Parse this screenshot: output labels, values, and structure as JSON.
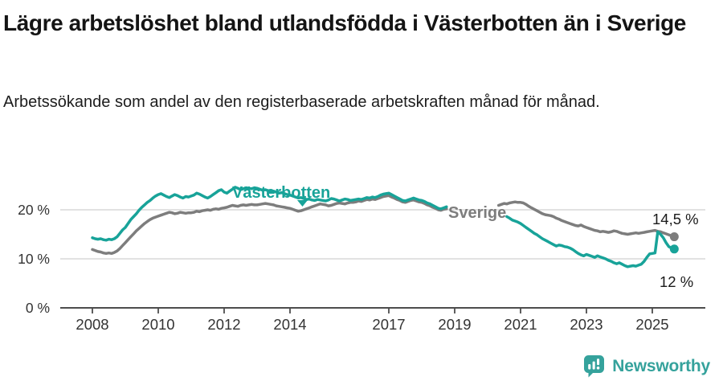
{
  "header": {
    "title": "Lägre arbetslöshet bland utlandsfödda i Västerbotten än i Sverige",
    "subtitle": "Arbetssökande som andel av den registerbaserade arbetskraften månad för månad."
  },
  "footer": {
    "brand": "Newsworthy",
    "logo_icon": "newsworthy-speech-bubble-bar-chart-icon"
  },
  "colors": {
    "vasterbotten_teal": "#18a399",
    "sverige_gray": "#7d7d7d",
    "grid": "#d8d8d8",
    "axis": "#4d4d4d",
    "tick_text": "#333333",
    "end_label_text": "#1a1a1a",
    "brand_teal": "#35a29c",
    "title_text": "#141414"
  },
  "chart_data": {
    "type": "line",
    "title": "Lägre arbetslöshet bland utlandsfödda i Västerbotten än i Sverige",
    "subtitle": "Arbetssökande som andel av den registerbaserade arbetskraften månad för månad.",
    "x_unit": "month",
    "x_start": "2008-01",
    "x_end": "2025-09",
    "x_ticks": [
      2008,
      2010,
      2012,
      2014,
      2017,
      2019,
      2021,
      2023,
      2025
    ],
    "y_ticks": [
      {
        "value": 0,
        "label": "0 %"
      },
      {
        "value": 10,
        "label": "10 %"
      },
      {
        "value": 20,
        "label": "20 %"
      }
    ],
    "ylim": [
      0,
      26.5
    ],
    "xlim": [
      2007.9,
      2026.6
    ],
    "grid": "horizontal",
    "legend": "inline-series-labels",
    "note_data_gap": "no data plotted Nov 2018 through Apr 2020 (visible gap in both lines)",
    "series": [
      {
        "name": "Sverige",
        "color": "#7d7d7d",
        "end_label": "14,5 %",
        "end_value": 14.5,
        "values": [
          11.9,
          11.7,
          11.5,
          11.4,
          11.2,
          11.1,
          11.2,
          11.1,
          11.3,
          11.6,
          12.1,
          12.7,
          13.3,
          13.9,
          14.5,
          15.1,
          15.7,
          16.2,
          16.7,
          17.2,
          17.6,
          18.0,
          18.3,
          18.5,
          18.7,
          18.9,
          19.1,
          19.3,
          19.5,
          19.4,
          19.2,
          19.3,
          19.5,
          19.4,
          19.3,
          19.4,
          19.4,
          19.5,
          19.7,
          19.6,
          19.8,
          19.9,
          20.0,
          19.9,
          20.1,
          20.2,
          20.1,
          20.3,
          20.4,
          20.5,
          20.7,
          20.9,
          20.8,
          20.7,
          20.9,
          21.0,
          20.9,
          21.0,
          21.1,
          21.0,
          21.0,
          21.1,
          21.2,
          21.3,
          21.2,
          21.1,
          21.0,
          20.8,
          20.7,
          20.6,
          20.5,
          20.4,
          20.3,
          20.1,
          19.9,
          19.7,
          19.8,
          20.0,
          20.2,
          20.4,
          20.6,
          20.8,
          21.0,
          21.2,
          21.1,
          21.0,
          20.8,
          20.9,
          21.1,
          21.3,
          21.4,
          21.3,
          21.2,
          21.4,
          21.5,
          21.5,
          21.6,
          21.8,
          21.7,
          21.9,
          22.1,
          22.0,
          22.2,
          22.1,
          22.3,
          22.5,
          22.7,
          22.8,
          22.9,
          22.6,
          22.4,
          22.1,
          21.9,
          21.6,
          21.5,
          21.7,
          21.9,
          22.0,
          21.8,
          21.6,
          21.5,
          21.3,
          21.0,
          20.8,
          20.5,
          20.3,
          20.0,
          19.9,
          20.1,
          20.2,
          null,
          null,
          null,
          null,
          null,
          null,
          null,
          null,
          null,
          null,
          null,
          null,
          null,
          null,
          null,
          null,
          null,
          null,
          20.9,
          21.1,
          21.3,
          21.2,
          21.4,
          21.5,
          21.6,
          21.5,
          21.5,
          21.4,
          21.1,
          20.7,
          20.4,
          20.1,
          19.8,
          19.5,
          19.2,
          19.0,
          18.9,
          18.8,
          18.6,
          18.3,
          18.1,
          17.8,
          17.6,
          17.4,
          17.2,
          17.0,
          16.8,
          16.7,
          16.9,
          16.6,
          16.4,
          16.2,
          16.0,
          15.8,
          15.7,
          15.5,
          15.6,
          15.5,
          15.4,
          15.5,
          15.7,
          15.6,
          15.4,
          15.2,
          15.1,
          15.0,
          15.1,
          15.2,
          15.3,
          15.2,
          15.3,
          15.4,
          15.5,
          15.6,
          15.7,
          15.8,
          15.6,
          15.5,
          15.3,
          15.1,
          14.9,
          14.7,
          14.5
        ]
      },
      {
        "name": "Västerbotten",
        "color": "#18a399",
        "end_label": "12 %",
        "end_value": 12.0,
        "values": [
          14.3,
          14.1,
          14.0,
          14.1,
          13.9,
          13.8,
          14.0,
          13.9,
          14.1,
          14.5,
          15.2,
          15.9,
          16.4,
          17.2,
          18.0,
          18.6,
          19.2,
          19.9,
          20.5,
          21.0,
          21.5,
          21.9,
          22.4,
          22.8,
          23.1,
          23.3,
          23.0,
          22.7,
          22.5,
          22.8,
          23.1,
          22.9,
          22.6,
          22.4,
          22.7,
          22.6,
          22.8,
          23.0,
          23.4,
          23.2,
          22.9,
          22.6,
          22.4,
          22.7,
          23.1,
          23.5,
          23.9,
          24.1,
          23.6,
          23.4,
          23.8,
          24.2,
          24.6,
          24.4,
          24.1,
          24.3,
          24.5,
          24.4,
          24.3,
          24.5,
          24.4,
          24.2,
          24.0,
          24.1,
          23.9,
          23.7,
          23.8,
          23.6,
          23.4,
          23.5,
          23.3,
          23.1,
          23.0,
          22.8,
          22.6,
          22.4,
          22.5,
          22.3,
          22.1,
          22.2,
          22.0,
          21.9,
          22.1,
          22.0,
          21.9,
          21.8,
          22.0,
          22.3,
          22.2,
          22.0,
          21.8,
          22.0,
          22.2,
          22.1,
          21.9,
          22.0,
          22.1,
          22.2,
          22.1,
          22.3,
          22.5,
          22.4,
          22.6,
          22.5,
          22.7,
          23.0,
          23.2,
          23.3,
          23.4,
          23.1,
          22.8,
          22.5,
          22.2,
          21.9,
          21.8,
          22.0,
          22.2,
          22.4,
          22.2,
          22.0,
          21.9,
          21.7,
          21.4,
          21.2,
          20.9,
          20.6,
          20.3,
          20.2,
          20.4,
          20.6,
          null,
          null,
          null,
          null,
          null,
          null,
          null,
          null,
          null,
          null,
          null,
          null,
          null,
          null,
          null,
          null,
          null,
          null,
          null,
          null,
          null,
          18.6,
          18.3,
          17.9,
          17.7,
          17.5,
          17.2,
          16.8,
          16.4,
          16.0,
          15.6,
          15.2,
          14.9,
          14.5,
          14.1,
          13.8,
          13.5,
          13.2,
          12.9,
          12.6,
          12.8,
          12.7,
          12.5,
          12.4,
          12.2,
          11.9,
          11.5,
          11.1,
          10.8,
          10.6,
          10.9,
          10.7,
          10.5,
          10.3,
          10.6,
          10.4,
          10.2,
          10.0,
          9.7,
          9.5,
          9.2,
          9.0,
          9.2,
          8.9,
          8.6,
          8.4,
          8.5,
          8.6,
          8.5,
          8.7,
          8.9,
          9.5,
          10.3,
          11.0,
          11.1,
          11.2,
          15.5,
          15.0,
          14.3,
          13.3,
          12.5,
          12.2,
          12.0
        ]
      }
    ]
  }
}
